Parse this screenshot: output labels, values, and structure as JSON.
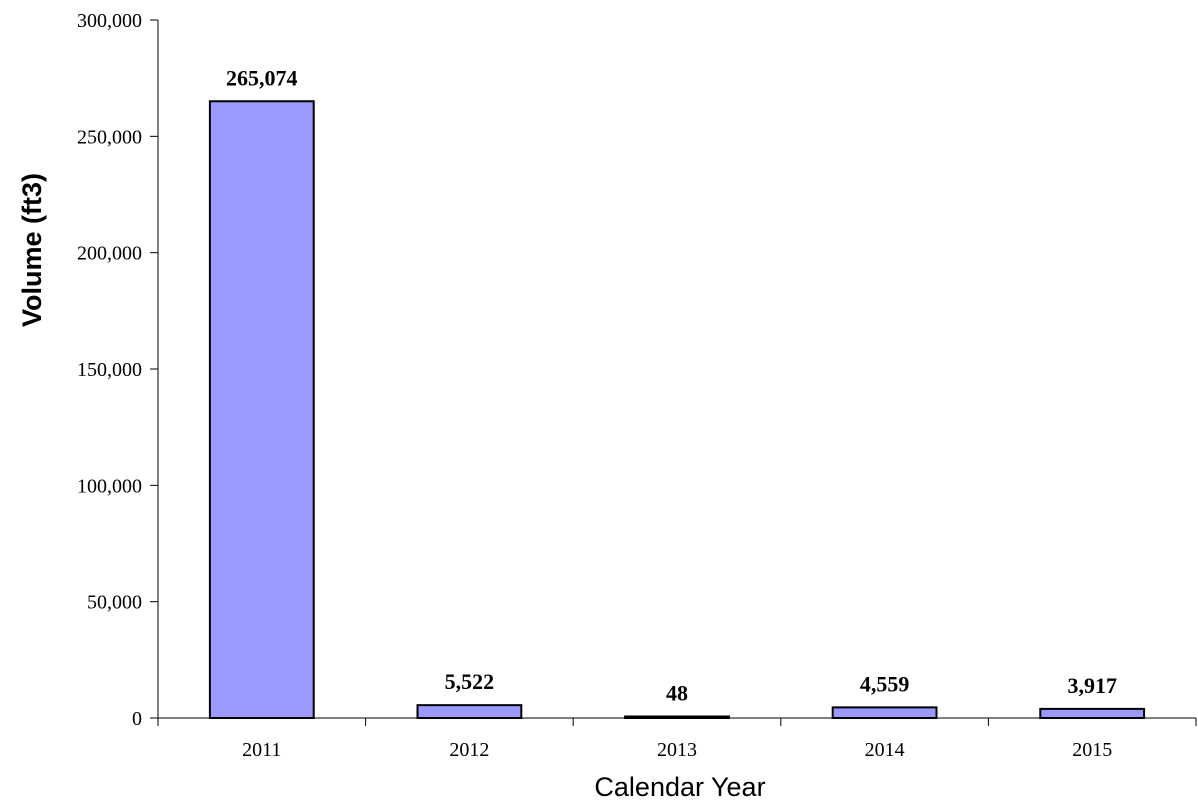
{
  "chart_data": {
    "type": "bar",
    "title": "",
    "xlabel": "Calendar Year",
    "ylabel": "Volume (ft3)",
    "categories": [
      "2011",
      "2012",
      "2013",
      "2014",
      "2015"
    ],
    "values": [
      265074,
      5522,
      48,
      4559,
      3917
    ],
    "data_labels": [
      "265,074",
      "5,522",
      "48",
      "4,559",
      "3,917"
    ],
    "ylim": [
      0,
      300000
    ],
    "y_ticks": [
      0,
      50000,
      100000,
      150000,
      200000,
      250000,
      300000
    ],
    "y_tick_labels": [
      "0",
      "50,000",
      "100,000",
      "150,000",
      "200,000",
      "250,000",
      "300,000"
    ],
    "grid": false,
    "legend": "none",
    "colors": {
      "bar_fill": "#9999ff",
      "bar_stroke": "#000000",
      "axis": "#000000"
    }
  }
}
